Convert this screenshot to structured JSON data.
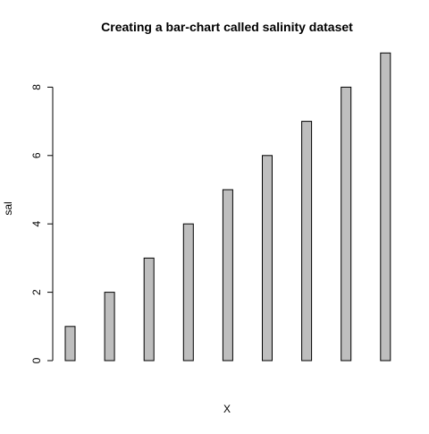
{
  "chart_data": {
    "type": "bar",
    "title": "Creating a bar-chart called salinity dataset",
    "xlabel": "X",
    "ylabel": "sal",
    "categories": [
      "",
      "",
      "",
      "",
      "",
      "",
      "",
      "",
      ""
    ],
    "values": [
      1,
      2,
      3,
      4,
      5,
      6,
      7,
      8,
      9
    ],
    "ylim": [
      0,
      9
    ],
    "yticks": [
      0,
      2,
      4,
      6,
      8
    ],
    "grid": false,
    "legend": "none",
    "colors": {
      "bar_fill": "#bebebe",
      "bar_stroke": "#000000",
      "axis": "#000000",
      "background": "#ffffff"
    }
  }
}
